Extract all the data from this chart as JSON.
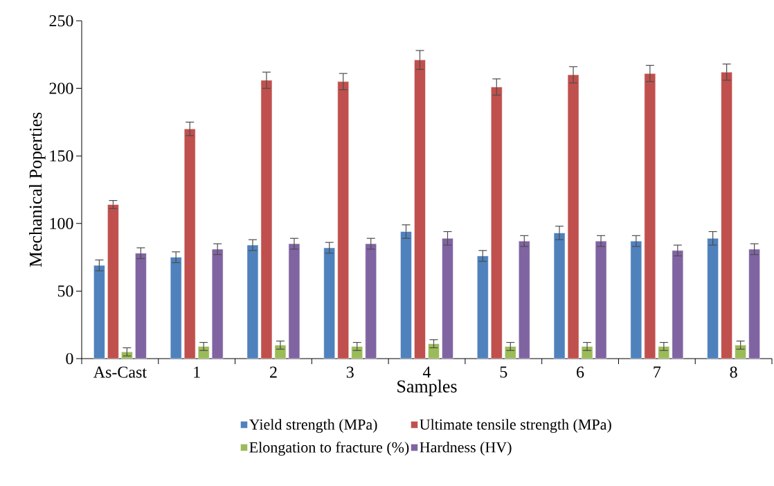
{
  "chart_data": {
    "type": "bar",
    "xlabel": "Samples",
    "ylabel": "Mechanical Poperties",
    "categories": [
      "As-Cast",
      "1",
      "2",
      "3",
      "4",
      "5",
      "6",
      "7",
      "8"
    ],
    "series": [
      {
        "name": "Yield strength (MPa)",
        "color": "#4f81bd",
        "values": [
          69,
          75,
          84,
          82,
          94,
          76,
          93,
          87,
          89
        ],
        "errors": [
          4,
          4,
          4,
          4,
          5,
          4,
          5,
          4,
          5
        ]
      },
      {
        "name": "Ultimate tensile strength (MPa)",
        "color": "#c0504d",
        "values": [
          114,
          170,
          206,
          205,
          221,
          201,
          210,
          211,
          212
        ],
        "errors": [
          3,
          5,
          6,
          6,
          7,
          6,
          6,
          6,
          6
        ]
      },
      {
        "name": "Elongation to fracture (%)",
        "color": "#9bbb59",
        "values": [
          5,
          9,
          10,
          9,
          11,
          9,
          9,
          9,
          10
        ],
        "errors": [
          3,
          3,
          3,
          3,
          3,
          3,
          3,
          3,
          3
        ]
      },
      {
        "name": "Hardness (HV)",
        "color": "#8064a2",
        "values": [
          78,
          81,
          85,
          85,
          89,
          87,
          87,
          80,
          81
        ],
        "errors": [
          4,
          4,
          4,
          4,
          5,
          4,
          4,
          4,
          4
        ]
      }
    ],
    "ylim": [
      0,
      250
    ],
    "yticks": [
      0,
      50,
      100,
      150,
      200,
      250
    ],
    "grid": false,
    "legend": "bottom"
  }
}
